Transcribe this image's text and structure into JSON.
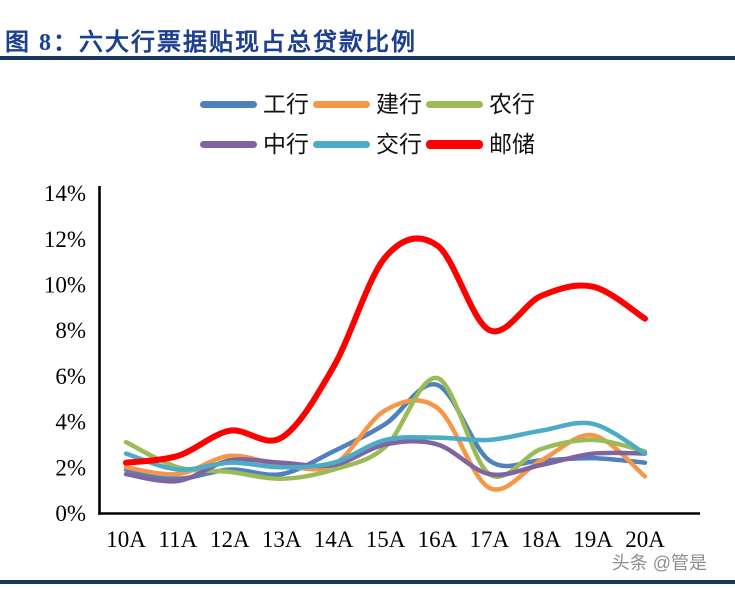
{
  "header": {
    "figure_title": "图 8：六大行票据贴现占总贷款比例"
  },
  "colors": {
    "title_blue": "#1c3f8e",
    "rule_navy": "#17375e",
    "axis_black": "#000000",
    "watermark_gray": "#8e8e8e"
  },
  "chart_data": {
    "type": "line",
    "title": "六大行票据贴现占总贷款比例",
    "unit": "%",
    "smooth": true,
    "grid": false,
    "legend_position": "top",
    "categories": [
      "10A",
      "11A",
      "12A",
      "13A",
      "14A",
      "15A",
      "16A",
      "17A",
      "18A",
      "19A",
      "20A"
    ],
    "series": [
      {
        "name": "工行",
        "color": "#4F81BD",
        "width": 4.5,
        "values": [
          1.9,
          1.5,
          1.9,
          1.7,
          2.7,
          3.9,
          5.6,
          2.3,
          2.3,
          2.4,
          2.2
        ]
      },
      {
        "name": "建行",
        "color": "#F79646",
        "width": 4.5,
        "values": [
          2.0,
          1.7,
          2.5,
          2.1,
          2.1,
          4.5,
          4.6,
          1.1,
          2.3,
          3.4,
          1.6
        ]
      },
      {
        "name": "农行",
        "color": "#9BBB59",
        "width": 4.5,
        "values": [
          3.1,
          2.0,
          1.8,
          1.5,
          1.9,
          2.9,
          5.9,
          1.7,
          2.8,
          3.2,
          2.7
        ]
      },
      {
        "name": "中行",
        "color": "#8064A2",
        "width": 4.5,
        "values": [
          1.7,
          1.4,
          2.3,
          2.2,
          2.1,
          3.0,
          3.0,
          1.7,
          2.1,
          2.6,
          2.6
        ]
      },
      {
        "name": "交行",
        "color": "#4BACC6",
        "width": 4.5,
        "values": [
          2.6,
          1.9,
          2.2,
          2.0,
          2.2,
          3.2,
          3.3,
          3.2,
          3.6,
          3.9,
          2.6
        ]
      },
      {
        "name": "邮储",
        "color": "#FF0000",
        "width": 6,
        "values": [
          2.2,
          2.5,
          3.6,
          3.3,
          6.4,
          11.2,
          11.7,
          8.0,
          9.5,
          9.9,
          8.5
        ]
      }
    ],
    "ylim": [
      0,
      14
    ],
    "ytick_labels": [
      "0%",
      "2%",
      "4%",
      "6%",
      "8%",
      "10%",
      "12%",
      "14%"
    ],
    "ytick_values": [
      0,
      2,
      4,
      6,
      8,
      10,
      12,
      14
    ],
    "xlabel": "",
    "ylabel": ""
  },
  "watermark": {
    "text": "头条 @管是"
  }
}
